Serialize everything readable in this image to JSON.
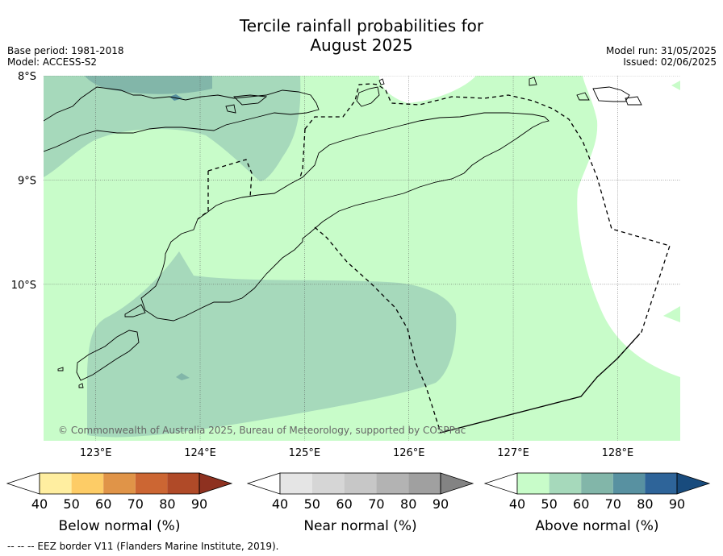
{
  "title_line1": "Tercile rainfall probabilities for",
  "title_line2": "August 2025",
  "base_period": "Base period: 1981-2018",
  "model": "Model: ACCESS-S2",
  "model_run": "Model run: 31/05/2025",
  "issued": "Issued: 02/06/2025",
  "copyright": "© Commonwealth of Australia 2025, Bureau of Meteorology, supported by COSPPac",
  "footnote": "--  --  -- EEZ border V11 (Flanders Marine Institute, 2019).",
  "chart_data": {
    "type": "heatmap",
    "title": "Tercile rainfall probabilities for August 2025",
    "lon_ticks": [
      "123°E",
      "124°E",
      "125°E",
      "126°E",
      "127°E",
      "128°E"
    ],
    "lat_ticks": [
      "8°S",
      "9°S",
      "10°S"
    ],
    "lon_range": [
      122.5,
      128.6
    ],
    "lat_range": [
      -11.5,
      -8.0
    ],
    "grid": true,
    "colorbars": [
      {
        "label": "Below normal (%)",
        "tick_labels": [
          "40",
          "50",
          "60",
          "70",
          "80",
          "90"
        ],
        "colors": [
          "#ffffff",
          "#ffeea0",
          "#fdcc66",
          "#e09448",
          "#cc6633",
          "#b04a28",
          "#8e3120"
        ]
      },
      {
        "label": "Near normal (%)",
        "tick_labels": [
          "40",
          "50",
          "60",
          "70",
          "80",
          "90"
        ],
        "colors": [
          "#ffffff",
          "#e5e5e5",
          "#d6d6d6",
          "#c7c7c7",
          "#b3b3b3",
          "#a0a0a0",
          "#838383"
        ]
      },
      {
        "label": "Above normal (%)",
        "tick_labels": [
          "40",
          "50",
          "60",
          "70",
          "80",
          "90"
        ],
        "colors": [
          "#ffffff",
          "#c8fcc9",
          "#a6d9bb",
          "#82b6a9",
          "#5891a1",
          "#2e6499",
          "#184b7d"
        ]
      }
    ],
    "regions": [
      {
        "category": "Above normal",
        "range": "40-50",
        "color": "#c8fcc9",
        "extent": "most land and sea"
      },
      {
        "category": "Above normal",
        "range": "50-60",
        "color": "#a6d9bb",
        "extent": "north-west and south-west"
      },
      {
        "category": "Above normal",
        "range": "60-70",
        "color": "#82b6a9",
        "extent": "small patches near 8°S"
      },
      {
        "category": "Below normal / Near normal",
        "range": "<40",
        "color": "#ffffff",
        "extent": "east and north-east"
      }
    ]
  }
}
